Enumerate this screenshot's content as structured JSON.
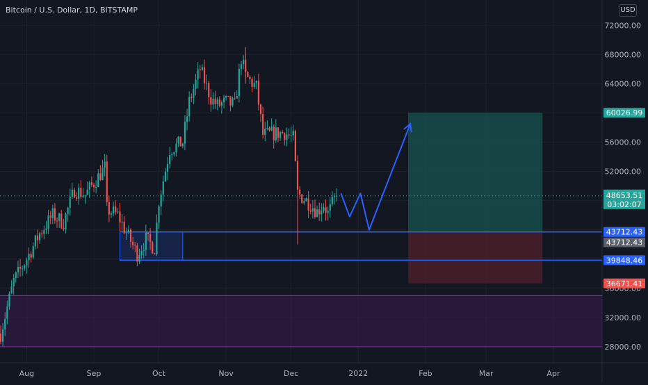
{
  "header": {
    "symbol": "Bitcoin / U.S. Dollar, 1D, BITSTAMP",
    "currency": "USD"
  },
  "colors": {
    "background": "#131722",
    "grid": "#1e222d",
    "up": "#26a69a",
    "down": "#ef5350",
    "line_blue": "#2962ff",
    "target_zone": "#174b4a",
    "stop_zone": "#4a2028",
    "demand_zone": "#3b1c4f",
    "demand_border": "#9c27b0"
  },
  "chart_data": {
    "type": "candlestick",
    "title": "Bitcoin / U.S. Dollar, 1D, BITSTAMP",
    "y_axis": {
      "ticks": [
        28000,
        32000,
        36000,
        40000,
        44000,
        48000,
        52000,
        56000,
        60000,
        64000,
        68000,
        72000
      ],
      "tick_labels": [
        "28000.00",
        "32000.00",
        "36000.00",
        "",
        "",
        "",
        "52000.00",
        "56000.00",
        "",
        "64000.00",
        "68000.00",
        "72000.00"
      ],
      "range": [
        26000,
        74500
      ]
    },
    "x_axis": {
      "labels": [
        "Aug",
        "Sep",
        "Oct",
        "Nov",
        "Dec",
        "2022",
        "Feb",
        "Mar",
        "Apr"
      ],
      "label_dates": [
        "2021-08-01",
        "2021-09-01",
        "2021-10-01",
        "2021-11-01",
        "2021-12-01",
        "2022-01-01",
        "2022-02-01",
        "2022-03-01",
        "2022-04-01"
      ]
    },
    "price_anchors": [
      [
        "2021-07-20",
        29800
      ],
      [
        "2021-07-26",
        37000
      ],
      [
        "2021-08-01",
        40000
      ],
      [
        "2021-08-07",
        43500
      ],
      [
        "2021-08-13",
        46000
      ],
      [
        "2021-08-18",
        45000
      ],
      [
        "2021-08-23",
        49500
      ],
      [
        "2021-08-28",
        48800
      ],
      [
        "2021-09-06",
        52500
      ],
      [
        "2021-09-07",
        46800
      ],
      [
        "2021-09-12",
        46000
      ],
      [
        "2021-09-21",
        40700
      ],
      [
        "2021-09-25",
        42700
      ],
      [
        "2021-09-29",
        41500
      ],
      [
        "2021-10-01",
        48000
      ],
      [
        "2021-10-06",
        55000
      ],
      [
        "2021-10-12",
        56000
      ],
      [
        "2021-10-15",
        61500
      ],
      [
        "2021-10-20",
        66000
      ],
      [
        "2021-10-25",
        62000
      ],
      [
        "2021-10-28",
        61000
      ],
      [
        "2021-11-01",
        61500
      ],
      [
        "2021-11-05",
        61000
      ],
      [
        "2021-11-08",
        67500
      ],
      [
        "2021-11-10",
        65000
      ],
      [
        "2021-11-15",
        63500
      ],
      [
        "2021-11-18",
        57000
      ],
      [
        "2021-11-24",
        57200
      ],
      [
        "2021-11-28",
        57300
      ],
      [
        "2021-12-02",
        56500
      ],
      [
        "2021-12-04",
        49000
      ],
      [
        "2021-12-10",
        47500
      ],
      [
        "2021-12-13",
        46500
      ],
      [
        "2021-12-16",
        47500
      ],
      [
        "2021-12-18",
        46200
      ],
      [
        "2021-12-22",
        48700
      ]
    ],
    "last_price": {
      "value": 48653.51,
      "label": "48653.51",
      "countdown": "03:02:07"
    },
    "levels": [
      {
        "name": "level-43712",
        "value": 43712.43,
        "label": "43712.43"
      },
      {
        "name": "level-39848",
        "value": 39848.46,
        "label": "39848.46"
      }
    ],
    "long_position": {
      "entry": 43712.43,
      "entry_label": "43712.43",
      "target": 60026.99,
      "target_label": "60026.99",
      "stop": 36671.41,
      "stop_label": "36671.41",
      "start": "2022-01-24",
      "end": "2022-03-27"
    },
    "demand_zone": {
      "top": 35000,
      "bottom": 28000,
      "start": "2021-07-20",
      "end": "2022-04-17"
    },
    "highlight_box": {
      "top": 43712.43,
      "bottom": 39848.46,
      "start": "2021-09-13",
      "end": "2021-10-12"
    },
    "projection_path": [
      [
        "2021-12-24",
        49000
      ],
      [
        "2021-12-28",
        45800
      ],
      [
        "2022-01-02",
        49000
      ],
      [
        "2022-01-06",
        44000
      ],
      [
        "2022-01-25",
        58500
      ]
    ]
  }
}
